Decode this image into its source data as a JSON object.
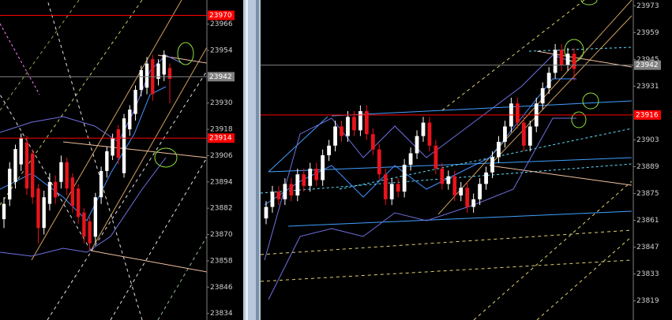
{
  "chart_data": [
    {
      "type": "candlestick",
      "ylim": [
        23831,
        23977
      ],
      "yticks": [
        23834,
        23846,
        23858,
        23870,
        23882,
        23894,
        23906,
        23918,
        23930,
        23942,
        23954,
        23966
      ],
      "up_color": "#ffffff",
      "down_color": "#e8141c",
      "price_lines": [
        {
          "value": 23970,
          "color": "#ff0000"
        },
        {
          "value": 23942,
          "color": "#808080"
        },
        {
          "value": 23914,
          "color": "#ff0000"
        }
      ],
      "open": [
        23877,
        23886,
        23894,
        23902,
        23912,
        23907,
        23891,
        23873,
        23884,
        23894,
        23894,
        23903,
        23896,
        23891,
        23880,
        23876,
        23869,
        23887,
        23899,
        23906,
        23918,
        23898,
        23918,
        23925,
        23936,
        23937,
        23950,
        23941,
        23943,
        23946
      ],
      "high": [
        23887,
        23903,
        23911,
        23916,
        23915,
        23909,
        23893,
        23890,
        23898,
        23897,
        23906,
        23905,
        23898,
        23893,
        23882,
        23878,
        23889,
        23901,
        23910,
        23916,
        23920,
        23925,
        23929,
        23938,
        23947,
        23951,
        23952,
        23950,
        23954,
        23948
      ],
      "low": [
        23873,
        23883,
        23891,
        23899,
        23888,
        23884,
        23866,
        23870,
        23881,
        23884,
        23891,
        23888,
        23880,
        23875,
        23866,
        23863,
        23866,
        23884,
        23896,
        23904,
        23902,
        23896,
        23915,
        23922,
        23933,
        23934,
        23931,
        23938,
        23940,
        23930
      ],
      "close": [
        23884,
        23900,
        23909,
        23914,
        23891,
        23887,
        23873,
        23887,
        23894,
        23887,
        23903,
        23891,
        23883,
        23878,
        23869,
        23866,
        23887,
        23899,
        23908,
        23914,
        23905,
        23923,
        23927,
        23936,
        23945,
        23948,
        23934,
        23948,
        23952,
        23941
      ]
    },
    {
      "type": "candlestick",
      "ylim": [
        23809,
        23976
      ],
      "yticks": [
        23819,
        23833,
        23847,
        23861,
        23875,
        23889,
        23903,
        23931,
        23945,
        23959,
        23973
      ],
      "up_color": "#ffffff",
      "down_color": "#e8141c",
      "price_lines": [
        {
          "value": 23942,
          "color": "#808080"
        },
        {
          "value": 23916,
          "color": "#ff0000"
        }
      ],
      "open": [
        23862,
        23868,
        23876,
        23872,
        23880,
        23874,
        23885,
        23879,
        23888,
        23882,
        23895,
        23900,
        23910,
        23905,
        23915,
        23908,
        23918,
        23906,
        23898,
        23885,
        23872,
        23880,
        23876,
        23890,
        23896,
        23905,
        23912,
        23900,
        23888,
        23880,
        23884,
        23874,
        23878,
        23868,
        23872,
        23880,
        23886,
        23894,
        23902,
        23910,
        23922,
        23912,
        23900,
        23910,
        23922,
        23930,
        23938,
        23950,
        23942,
        23948
      ],
      "high": [
        23871,
        23879,
        23879,
        23883,
        23883,
        23888,
        23888,
        23891,
        23891,
        23898,
        23903,
        23913,
        23913,
        23918,
        23918,
        23921,
        23921,
        23909,
        23901,
        23888,
        23883,
        23883,
        23893,
        23899,
        23908,
        23915,
        23915,
        23903,
        23891,
        23887,
        23887,
        23881,
        23881,
        23875,
        23883,
        23889,
        23897,
        23905,
        23913,
        23925,
        23925,
        23915,
        23913,
        23925,
        23933,
        23941,
        23953,
        23953,
        23951,
        23951
      ],
      "low": [
        23859,
        23865,
        23869,
        23869,
        23871,
        23871,
        23876,
        23876,
        23879,
        23879,
        23892,
        23897,
        23902,
        23902,
        23905,
        23905,
        23903,
        23895,
        23882,
        23869,
        23869,
        23873,
        23873,
        23887,
        23893,
        23902,
        23897,
        23885,
        23877,
        23877,
        23871,
        23871,
        23865,
        23865,
        23869,
        23877,
        23883,
        23891,
        23899,
        23907,
        23909,
        23897,
        23897,
        23907,
        23919,
        23927,
        23935,
        23939,
        23939,
        23934
      ],
      "close": [
        23868,
        23876,
        23872,
        23880,
        23874,
        23885,
        23879,
        23888,
        23882,
        23895,
        23900,
        23910,
        23905,
        23915,
        23908,
        23918,
        23906,
        23898,
        23885,
        23872,
        23880,
        23876,
        23890,
        23896,
        23905,
        23912,
        23900,
        23888,
        23880,
        23884,
        23874,
        23878,
        23868,
        23872,
        23880,
        23886,
        23894,
        23902,
        23910,
        23922,
        23912,
        23900,
        23910,
        23922,
        23930,
        23938,
        23950,
        23942,
        23948,
        23940
      ]
    }
  ]
}
